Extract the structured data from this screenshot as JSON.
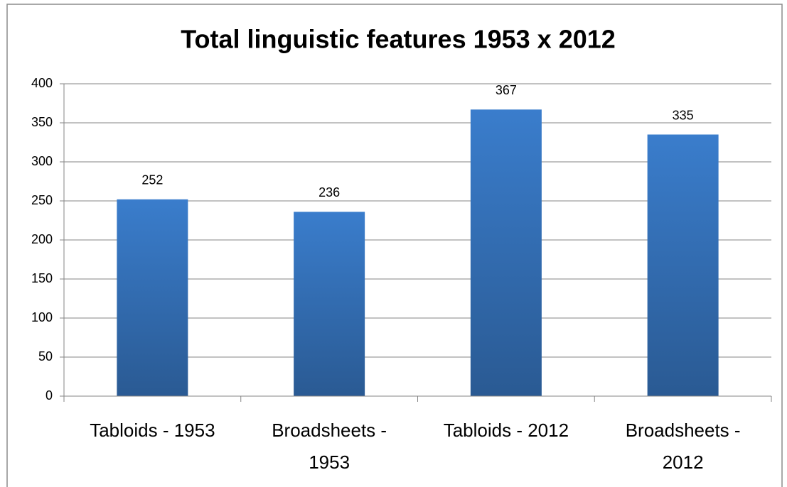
{
  "chart_data": {
    "type": "bar",
    "title": "Total linguistic features 1953 x 2012",
    "categories": [
      "Tabloids - 1953",
      "Broadsheets - 1953",
      "Tabloids - 2012",
      "Broadsheets - 2012"
    ],
    "values": [
      252,
      236,
      367,
      335
    ],
    "color": "#3a7dcc",
    "ylim": [
      0,
      400
    ],
    "yticks": [
      0,
      50,
      100,
      150,
      200,
      250,
      300,
      350,
      400
    ],
    "grid": true
  }
}
